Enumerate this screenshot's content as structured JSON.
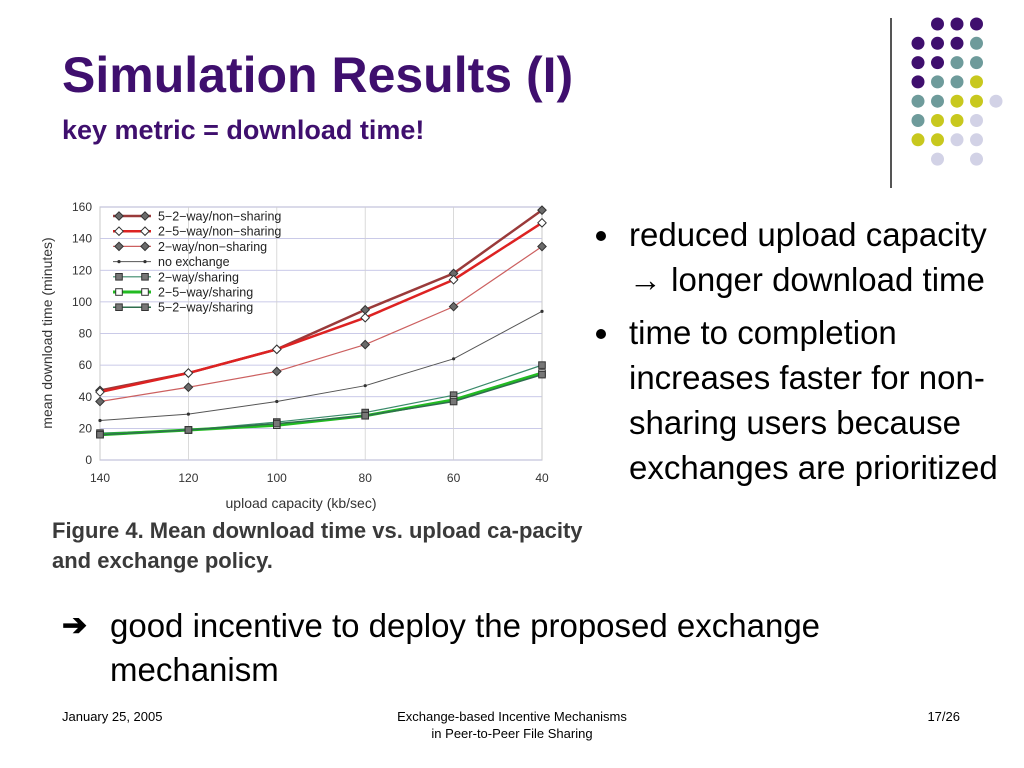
{
  "slide": {
    "title": "Simulation Results (I)",
    "subtitle": "key metric = download time!"
  },
  "colors": {
    "title": "#3f0f6e",
    "dot_purple": "#3f0f6e",
    "dot_teal": "#6e9b9b",
    "dot_yellow": "#c8c81e",
    "dot_lavender": "#d2d2e6"
  },
  "chart_data": {
    "type": "line",
    "xlabel": "upload capacity (kb/sec)",
    "ylabel": "mean download time (minutes)",
    "x": [
      140,
      120,
      100,
      80,
      60,
      40
    ],
    "xlim": [
      140,
      40
    ],
    "ylim": [
      0,
      160
    ],
    "yticks": [
      0,
      20,
      40,
      60,
      80,
      100,
      120,
      140,
      160
    ],
    "grid": true,
    "legend_position": "top-left",
    "series": [
      {
        "name": "5−2−way/non−sharing",
        "values": [
          44,
          55,
          70,
          95,
          118,
          158
        ],
        "color": "#9a3a3a",
        "marker": "diamond-filled",
        "width": 2.5
      },
      {
        "name": "2−5−way/non−sharing",
        "values": [
          43,
          55,
          70,
          90,
          114,
          150
        ],
        "color": "#dd2222",
        "marker": "diamond-open",
        "width": 2.5
      },
      {
        "name": "2−way/non−sharing",
        "values": [
          37,
          46,
          56,
          73,
          97,
          135
        ],
        "color": "#cc6060",
        "marker": "diamond-filled",
        "width": 1.2
      },
      {
        "name": "no exchange",
        "values": [
          25,
          29,
          37,
          47,
          64,
          94
        ],
        "color": "#555555",
        "marker": "dot",
        "width": 1
      },
      {
        "name": "2−way/sharing",
        "values": [
          17,
          19,
          24,
          30,
          41,
          60
        ],
        "color": "#3a8a6a",
        "marker": "square-filled",
        "width": 1.2
      },
      {
        "name": "2−5−way/sharing",
        "values": [
          16,
          19,
          22,
          28,
          38,
          55
        ],
        "color": "#22bb22",
        "marker": "square-open",
        "width": 3
      },
      {
        "name": "5−2−way/sharing",
        "values": [
          16,
          19,
          23,
          28,
          37,
          54
        ],
        "color": "#2e6e4e",
        "marker": "square-filled",
        "width": 1.5
      }
    ]
  },
  "figure": {
    "caption": "Figure 4. Mean download time vs. upload ca-pacity and exchange policy."
  },
  "bullets": [
    "reduced upload capacity → longer download time",
    "time to completion increases faster for non-sharing users because exchanges are prioritized"
  ],
  "conclusion": {
    "arrow": "➔",
    "text": "good incentive to deploy the proposed exchange mechanism"
  },
  "footer": {
    "date": "January 25, 2005",
    "center_line1": "Exchange-based Incentive Mechanisms",
    "center_line2": "in Peer-to-Peer File Sharing",
    "page": "17/26"
  }
}
